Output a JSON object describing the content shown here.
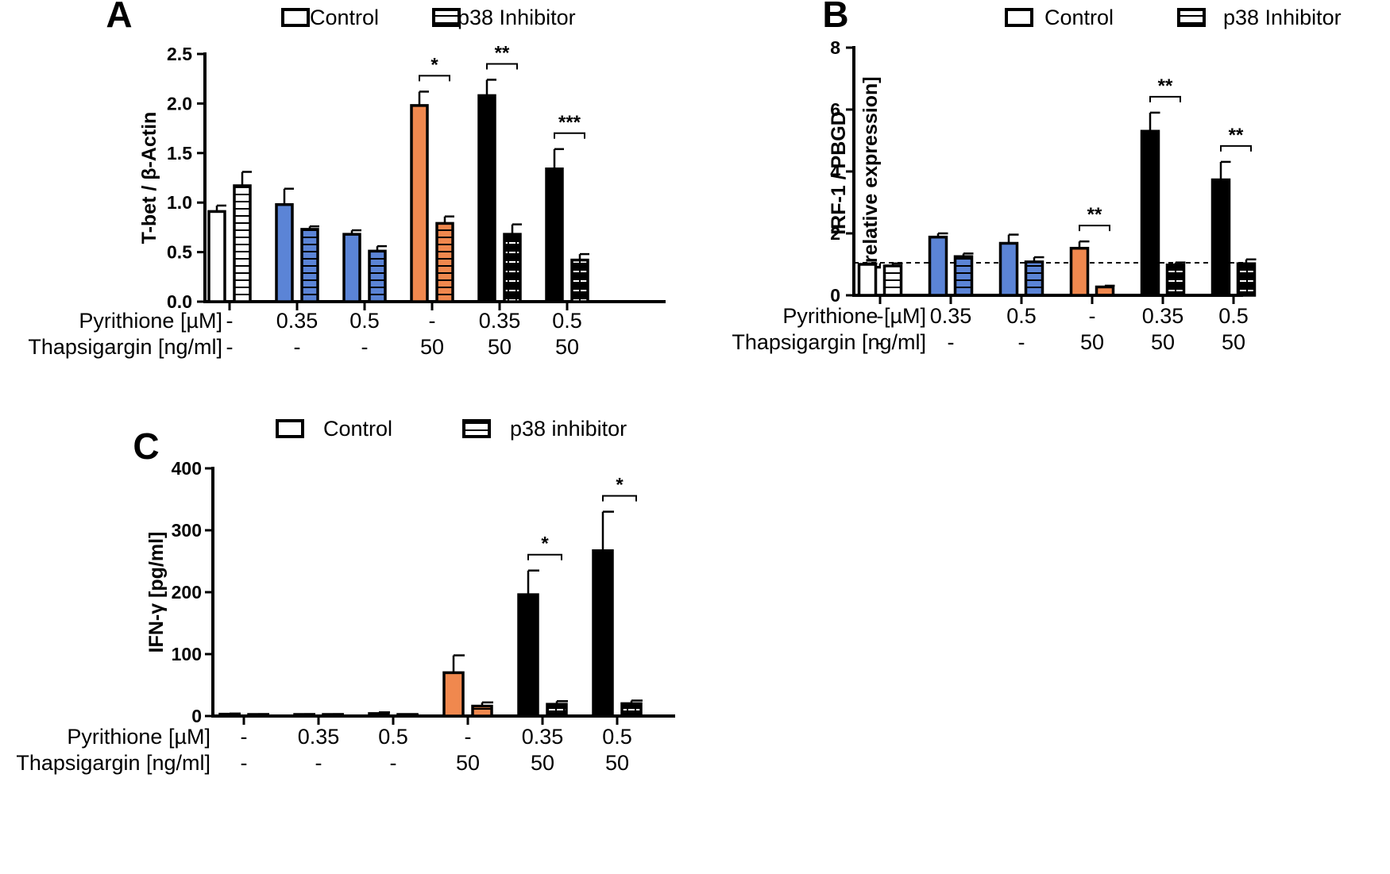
{
  "chart_data": [
    {
      "panel": "A",
      "type": "bar",
      "ylabel": "T-bet / β-Actin",
      "ylim": [
        0,
        2.5
      ],
      "yticks": [
        "0.0",
        "0.5",
        "1.0",
        "1.5",
        "2.0",
        "2.5"
      ],
      "legend": [
        "Control",
        "p38 Inhibitor"
      ],
      "condition_rows": [
        {
          "label": "Pyrithione [µM]",
          "values": [
            "-",
            "0.35",
            "0.5",
            "-",
            "0.35",
            "0.5"
          ]
        },
        {
          "label": "Thapsigargin [ng/ml]",
          "values": [
            "-",
            "-",
            "-",
            "50",
            "50",
            "50"
          ]
        }
      ],
      "group_colors": [
        "#ffffff",
        "#5b84d6",
        "#5b84d6",
        "#f0884e",
        "#000000",
        "#000000"
      ],
      "series": [
        {
          "name": "Control",
          "values": [
            0.91,
            0.98,
            0.68,
            1.98,
            2.08,
            1.34
          ],
          "errors": [
            0.06,
            0.16,
            0.04,
            0.14,
            0.16,
            0.2
          ]
        },
        {
          "name": "p38 Inhibitor",
          "values": [
            1.17,
            0.73,
            0.51,
            0.79,
            0.68,
            0.42
          ],
          "errors": [
            0.14,
            0.03,
            0.05,
            0.07,
            0.1,
            0.06
          ]
        }
      ],
      "significance": [
        {
          "group": 3,
          "label": "*"
        },
        {
          "group": 4,
          "label": "**"
        },
        {
          "group": 5,
          "label": "***"
        }
      ]
    },
    {
      "panel": "B",
      "type": "bar",
      "ylabel": [
        "IRF-1 / PBGD",
        "[relative expression]"
      ],
      "ylim": [
        0,
        8
      ],
      "yticks": [
        "0",
        "2",
        "4",
        "6",
        "8"
      ],
      "reference_line": 1.05,
      "legend": [
        "Control",
        "p38 Inhibitor"
      ],
      "condition_rows": [
        {
          "label": "Pyrithione [µM]",
          "values": [
            "-",
            "0.35",
            "0.5",
            "-",
            "0.35",
            "0.5"
          ]
        },
        {
          "label": "Thapsigargin [ng/ml]",
          "values": [
            "-",
            "-",
            "-",
            "50",
            "50",
            "50"
          ]
        }
      ],
      "group_colors": [
        "#ffffff",
        "#5b84d6",
        "#5b84d6",
        "#f0884e",
        "#000000",
        "#000000"
      ],
      "series": [
        {
          "name": "Control",
          "values": [
            1.0,
            1.88,
            1.68,
            1.52,
            5.3,
            3.73
          ],
          "errors": [
            0.03,
            0.12,
            0.28,
            0.22,
            0.6,
            0.58
          ]
        },
        {
          "name": "p38 Inhibitor",
          "values": [
            0.95,
            1.25,
            1.08,
            0.27,
            0.98,
            1.02
          ],
          "errors": [
            0.08,
            0.1,
            0.15,
            0.04,
            0.08,
            0.14
          ]
        }
      ],
      "significance": [
        {
          "group": 3,
          "label": "**"
        },
        {
          "group": 4,
          "label": "**"
        },
        {
          "group": 5,
          "label": "**"
        }
      ]
    },
    {
      "panel": "C",
      "type": "bar",
      "ylabel": "IFN-γ [pg/ml]",
      "ylim": [
        0,
        400
      ],
      "yticks": [
        "0",
        "100",
        "200",
        "300",
        "400"
      ],
      "legend": [
        "Control",
        "p38 inhibitor"
      ],
      "condition_rows": [
        {
          "label": "Pyrithione [µM]",
          "values": [
            "-",
            "0.35",
            "0.5",
            "-",
            "0.35",
            "0.5"
          ]
        },
        {
          "label": "Thapsigargin [ng/ml]",
          "values": [
            "-",
            "-",
            "-",
            "50",
            "50",
            "50"
          ]
        }
      ],
      "group_colors": [
        "#ffffff",
        "#5b84d6",
        "#5b84d6",
        "#f0884e",
        "#000000",
        "#000000"
      ],
      "series": [
        {
          "name": "Control",
          "values": [
            3,
            2,
            4,
            70,
            196,
            267
          ],
          "errors": [
            1,
            1,
            2,
            28,
            39,
            63
          ]
        },
        {
          "name": "p38 inhibitor",
          "values": [
            2,
            2,
            1,
            16,
            19,
            20
          ],
          "errors": [
            1,
            1,
            1,
            6,
            5,
            5
          ]
        }
      ],
      "significance": [
        {
          "group": 4,
          "label": "*"
        },
        {
          "group": 5,
          "label": "*"
        }
      ]
    }
  ]
}
